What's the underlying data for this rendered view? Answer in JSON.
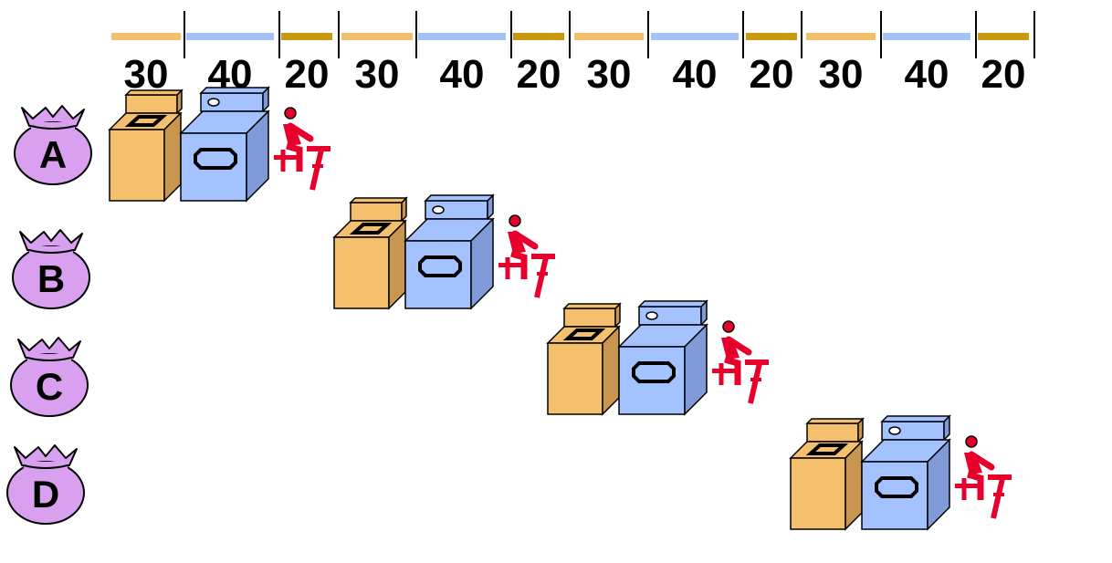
{
  "timeline": {
    "segments": [
      {
        "label": "30",
        "color_key": "wash"
      },
      {
        "label": "40",
        "color_key": "dry"
      },
      {
        "label": "20",
        "color_key": "fold"
      },
      {
        "label": "30",
        "color_key": "wash"
      },
      {
        "label": "40",
        "color_key": "dry"
      },
      {
        "label": "20",
        "color_key": "fold"
      },
      {
        "label": "30",
        "color_key": "wash"
      },
      {
        "label": "40",
        "color_key": "dry"
      },
      {
        "label": "20",
        "color_key": "fold"
      },
      {
        "label": "30",
        "color_key": "wash"
      },
      {
        "label": "40",
        "color_key": "dry"
      },
      {
        "label": "20",
        "color_key": "fold"
      }
    ]
  },
  "loads": [
    {
      "label": "A",
      "start_segment": 0
    },
    {
      "label": "B",
      "start_segment": 3
    },
    {
      "label": "C",
      "start_segment": 6
    },
    {
      "label": "D",
      "start_segment": 9
    }
  ],
  "colors": {
    "wash": "#f2bf6c",
    "dry": "#a4c2f4",
    "fold": "#c89a10",
    "bag": "#d9a0f0",
    "washer": "#f5c06e",
    "washer_side": "#c8964e",
    "dryer": "#a4c2ff",
    "dryer_side": "#7f9ad6",
    "person": "#e8002c"
  },
  "icons": {
    "bag": "laundry-bag-icon",
    "washer": "washer-icon",
    "dryer": "dryer-icon",
    "folder": "folding-person-icon"
  }
}
